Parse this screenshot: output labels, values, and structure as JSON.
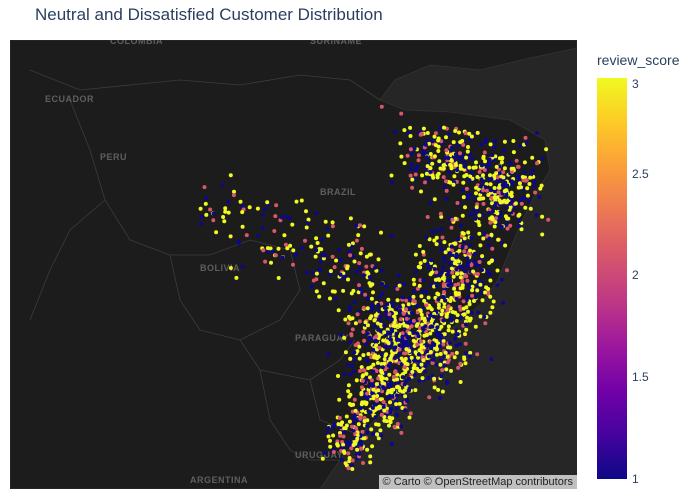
{
  "title": "Neutral and Dissatisfied Customer Distribution",
  "map": {
    "basemap": "dark",
    "country_labels": [
      "COLOMBIA",
      "SURINAME",
      "ECUADOR",
      "PERU",
      "BRAZIL",
      "BOLIVIA",
      "PARAGUAY",
      "URUGUAY",
      "ARGENTINA"
    ],
    "attribution": "© Carto © OpenStreetMap contributors"
  },
  "colorbar": {
    "title": "review_score",
    "ticks": [
      "3",
      "2.5",
      "2",
      "1.5",
      "1"
    ],
    "range": [
      1,
      3
    ],
    "colorscale": [
      "#0d0887",
      "#46039f",
      "#7201a8",
      "#9c179e",
      "#bd3786",
      "#d8576b",
      "#ed7953",
      "#fb9f3a",
      "#fdca26",
      "#f0f921"
    ]
  },
  "colors": {
    "land": "#1c1c1c",
    "ocean": "#262626",
    "border": "#3a3a3a"
  },
  "chart_data": {
    "type": "scatter",
    "x_label": "",
    "y_label": "",
    "color_by": "review_score",
    "review_score_range": [
      1,
      3
    ]
  }
}
